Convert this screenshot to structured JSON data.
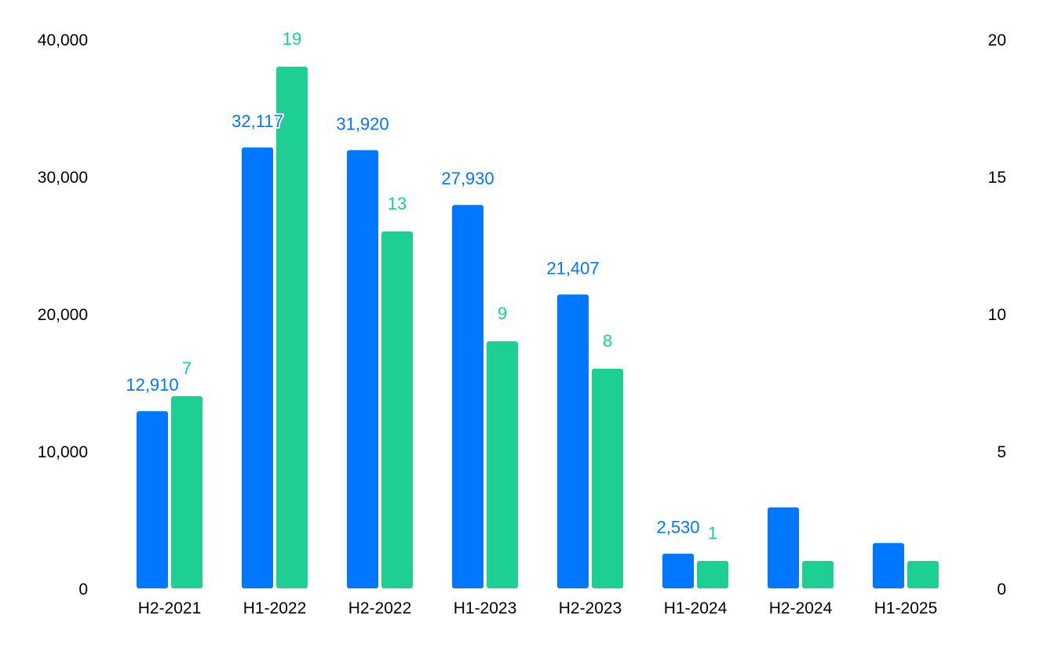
{
  "chart_data": {
    "type": "bar",
    "categories": [
      "H2-2021",
      "H1-2022",
      "H2-2022",
      "H1-2023",
      "H2-2023",
      "H1-2024",
      "H2-2024",
      "H1-2025"
    ],
    "series": [
      {
        "axis": "left",
        "color": "#0077FF",
        "values": [
          12910,
          32117,
          31920,
          27930,
          21407,
          2530,
          5900,
          3300
        ],
        "labels": [
          "12,910",
          "32,117",
          "31,920",
          "27,930",
          "21,407",
          "2,530",
          "",
          ""
        ]
      },
      {
        "axis": "right",
        "color": "#1ECF93",
        "values": [
          7,
          19,
          13,
          9,
          8,
          1,
          1,
          1
        ],
        "labels": [
          "7",
          "19",
          "13",
          "9",
          "8",
          "1",
          "",
          ""
        ]
      }
    ],
    "y_left": {
      "min": 0,
      "max": 40000,
      "ticks": [
        0,
        10000,
        20000,
        30000,
        40000
      ],
      "tick_labels": [
        "0",
        "10,000",
        "20,000",
        "30,000",
        "40,000"
      ]
    },
    "y_right": {
      "min": 0,
      "max": 20,
      "ticks": [
        0,
        5,
        10,
        15,
        20
      ],
      "tick_labels": [
        "0",
        "5",
        "10",
        "15",
        "20"
      ]
    },
    "grid": false,
    "legend": "none"
  }
}
